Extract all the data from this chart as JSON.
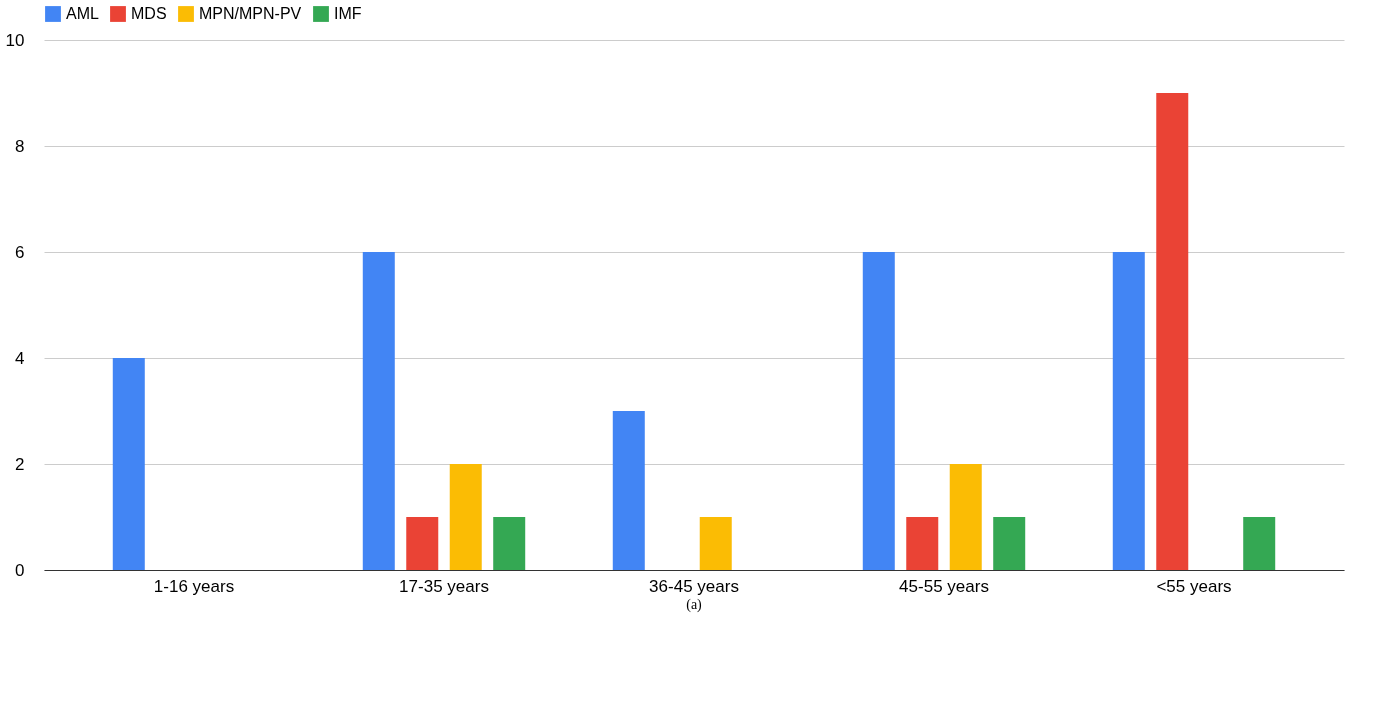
{
  "chart_data": {
    "type": "bar",
    "categories": [
      "1-16 years",
      "17-35 years",
      "36-45 years",
      "45-55 years",
      "<55 years"
    ],
    "series": [
      {
        "name": "AML",
        "color": "#4285f4",
        "values": [
          4,
          6,
          3,
          6,
          6
        ]
      },
      {
        "name": "MDS",
        "color": "#ea4335",
        "values": [
          0,
          1,
          0,
          1,
          9
        ]
      },
      {
        "name": "MPN/MPN-PV",
        "color": "#fbbc04",
        "values": [
          0,
          2,
          1,
          2,
          0
        ]
      },
      {
        "name": "IMF",
        "color": "#34a853",
        "values": [
          0,
          1,
          0,
          1,
          1
        ]
      }
    ],
    "ylim": [
      0,
      10
    ],
    "yticks": [
      0,
      2,
      4,
      6,
      8,
      10
    ],
    "grid": "y",
    "legend": "top",
    "annotations": [
      "(a)"
    ]
  }
}
